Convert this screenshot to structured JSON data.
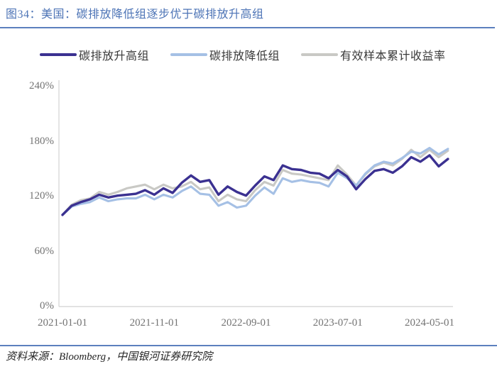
{
  "title": "图34：美国：碳排放降低组逐步优于碳排放升高组",
  "source": "资料来源：Bloomberg，中国银河证券研究院",
  "colors": {
    "title_text": "#4D74B6",
    "rule_blue": "#5C80BE",
    "axis_line": "#D9D9D9",
    "tick_text": "#737373",
    "series_up": "#3B3191",
    "series_down": "#A5C0E5",
    "series_market": "#C9C9C5"
  },
  "chart_data": {
    "type": "line",
    "title": "图34：美国：碳排放降低组逐步优于碳排放升高组",
    "unit": "percent",
    "grid": false,
    "legend_position": "top",
    "ylim": [
      0,
      240
    ],
    "y_ticks": [
      {
        "label": "0%",
        "value": 0
      },
      {
        "label": "60%",
        "value": 60
      },
      {
        "label": "120%",
        "value": 120
      },
      {
        "label": "180%",
        "value": 180
      },
      {
        "label": "240%",
        "value": 240
      }
    ],
    "x_tick_labels": [
      {
        "label": "2021-01-01",
        "month_index": 0
      },
      {
        "label": "2021-11-01",
        "month_index": 10
      },
      {
        "label": "2022-09-01",
        "month_index": 20
      },
      {
        "label": "2023-07-01",
        "month_index": 30
      },
      {
        "label": "2024-05-01",
        "month_index": 40
      }
    ],
    "x_months": [
      "2021-01",
      "2021-02",
      "2021-03",
      "2021-04",
      "2021-05",
      "2021-06",
      "2021-07",
      "2021-08",
      "2021-09",
      "2021-10",
      "2021-11",
      "2021-12",
      "2022-01",
      "2022-02",
      "2022-03",
      "2022-04",
      "2022-05",
      "2022-06",
      "2022-07",
      "2022-08",
      "2022-09",
      "2022-10",
      "2022-11",
      "2022-12",
      "2023-01",
      "2023-02",
      "2023-03",
      "2023-04",
      "2023-05",
      "2023-06",
      "2023-07",
      "2023-08",
      "2023-09",
      "2023-10",
      "2023-11",
      "2023-12",
      "2024-01",
      "2024-02",
      "2024-03",
      "2024-04",
      "2024-05",
      "2024-06",
      "2024-07"
    ],
    "series": [
      {
        "name": "碳排放升高组",
        "color": "#3B3191",
        "values": [
          100,
          110,
          114,
          117,
          122,
          119,
          121,
          122,
          123,
          127,
          122,
          129,
          124,
          135,
          143,
          136,
          138,
          122,
          131,
          125,
          121,
          132,
          142,
          138,
          154,
          150,
          149,
          146,
          145,
          140,
          149,
          142,
          128,
          139,
          148,
          150,
          146,
          153,
          163,
          158,
          165,
          153,
          161
        ]
      },
      {
        "name": "碳排放降低组",
        "color": "#A5C0E5",
        "values": [
          100,
          109,
          112,
          114,
          119,
          115,
          117,
          118,
          118,
          122,
          117,
          122,
          119,
          126,
          131,
          123,
          122,
          110,
          114,
          108,
          110,
          121,
          130,
          123,
          140,
          136,
          138,
          136,
          135,
          131,
          146,
          140,
          132,
          145,
          154,
          158,
          156,
          162,
          169,
          167,
          173,
          166,
          172
        ]
      },
      {
        "name": "有效样本累计收益率",
        "color": "#C9C9C5",
        "values": [
          100,
          111,
          116,
          118,
          125,
          122,
          125,
          129,
          131,
          133,
          128,
          133,
          129,
          131,
          136,
          128,
          130,
          115,
          122,
          117,
          115,
          127,
          136,
          132,
          149,
          145,
          144,
          142,
          140,
          138,
          154,
          144,
          132,
          144,
          153,
          157,
          154,
          161,
          171,
          163,
          171,
          163,
          170
        ]
      }
    ]
  }
}
